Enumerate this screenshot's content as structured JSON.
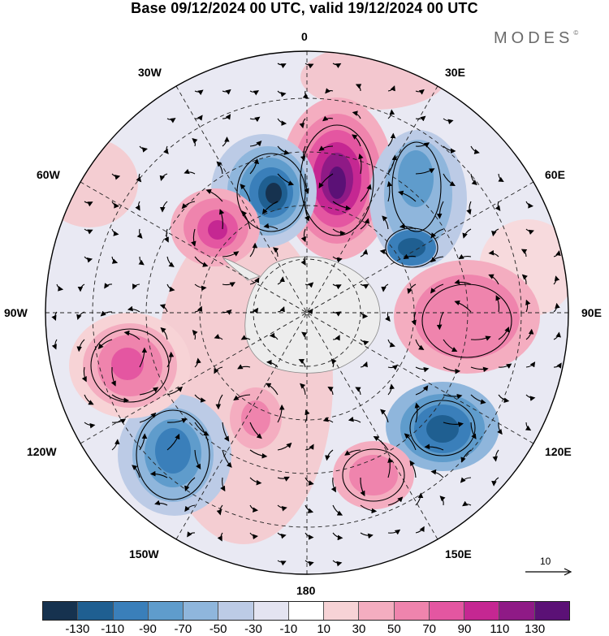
{
  "title": "Base 09/12/2024 00 UTC, valid 19/12/2024 00 UTC",
  "brand": "MODES",
  "brand_mark": "©",
  "longitude_labels": {
    "lon_0": "0",
    "lon_30e": "30E",
    "lon_60e": "60E",
    "lon_90e": "90E",
    "lon_120e": "120E",
    "lon_150e": "150E",
    "lon_180": "180",
    "lon_150w": "150W",
    "lon_120w": "120W",
    "lon_90w": "90W",
    "lon_60w": "60W",
    "lon_30w": "30W"
  },
  "reference_vector_label": "10",
  "colorbar": {
    "colors": [
      "#16324f",
      "#1f5f91",
      "#3a7fba",
      "#5f9ccc",
      "#8fb6dc",
      "#bccbe6",
      "#e4e4f1",
      "#ffffff",
      "#f7d3d6",
      "#f4adc0",
      "#ef84ad",
      "#e456a1",
      "#c52792",
      "#8f1a86",
      "#5b1176"
    ],
    "tick_labels": [
      "-130",
      "-110",
      "-90",
      "-70",
      "-50",
      "-30",
      "-10",
      "10",
      "30",
      "50",
      "70",
      "90",
      "110",
      "130"
    ]
  }
}
